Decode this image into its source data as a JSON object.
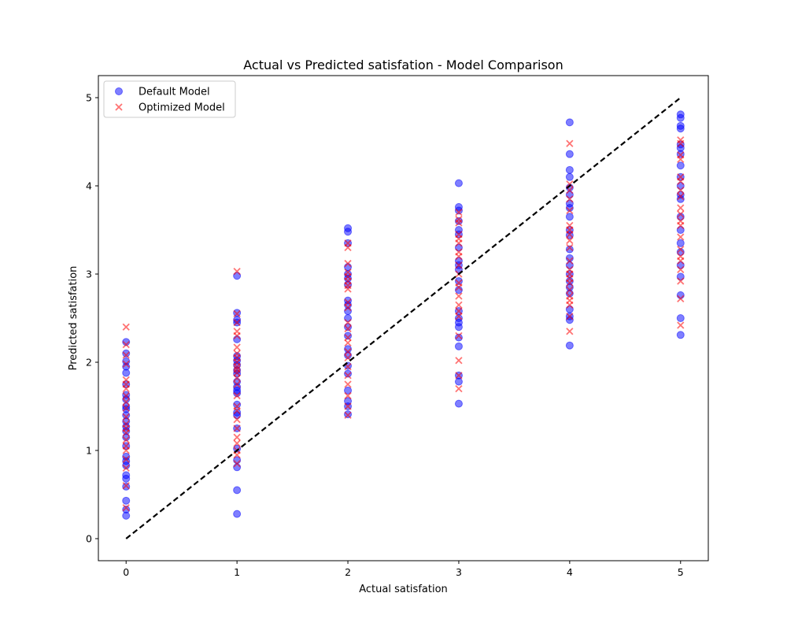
{
  "chart_data": {
    "type": "scatter",
    "title": "Actual vs Predicted satisfation - Model Comparison",
    "xlabel": "Actual satisfation",
    "ylabel": "Predicted satisfation",
    "xlim": [
      -0.25,
      5.25
    ],
    "ylim": [
      -0.25,
      5.25
    ],
    "xticks": [
      0,
      1,
      2,
      3,
      4,
      5
    ],
    "yticks": [
      0,
      1,
      2,
      3,
      4,
      5
    ],
    "grid": false,
    "legend_position": "upper-left",
    "reference_line": {
      "from": [
        0,
        0
      ],
      "to": [
        5,
        5
      ],
      "style": "dashed",
      "color": "#000000"
    },
    "series": [
      {
        "name": "Default Model",
        "marker": "circle",
        "color": "#0000ff",
        "points": [
          [
            0,
            2.23
          ],
          [
            0,
            2.1
          ],
          [
            0,
            2.01
          ],
          [
            0,
            1.95
          ],
          [
            0,
            1.88
          ],
          [
            0,
            1.75
          ],
          [
            0,
            1.63
          ],
          [
            0,
            1.58
          ],
          [
            0,
            1.5
          ],
          [
            0,
            1.47
          ],
          [
            0,
            1.4
          ],
          [
            0,
            1.33
          ],
          [
            0,
            1.27
          ],
          [
            0,
            1.22
          ],
          [
            0,
            1.15
          ],
          [
            0,
            1.05
          ],
          [
            0,
            0.93
          ],
          [
            0,
            0.88
          ],
          [
            0,
            0.83
          ],
          [
            0,
            0.72
          ],
          [
            0,
            0.68
          ],
          [
            0,
            0.59
          ],
          [
            0,
            0.43
          ],
          [
            0,
            0.33
          ],
          [
            0,
            0.26
          ],
          [
            1,
            2.98
          ],
          [
            1,
            2.56
          ],
          [
            1,
            2.48
          ],
          [
            1,
            2.45
          ],
          [
            1,
            2.26
          ],
          [
            1,
            2.07
          ],
          [
            1,
            2.02
          ],
          [
            1,
            1.97
          ],
          [
            1,
            1.91
          ],
          [
            1,
            1.87
          ],
          [
            1,
            1.78
          ],
          [
            1,
            1.72
          ],
          [
            1,
            1.68
          ],
          [
            1,
            1.65
          ],
          [
            1,
            1.52
          ],
          [
            1,
            1.43
          ],
          [
            1,
            1.4
          ],
          [
            1,
            1.25
          ],
          [
            1,
            1.02
          ],
          [
            1,
            0.89
          ],
          [
            1,
            0.81
          ],
          [
            1,
            0.55
          ],
          [
            1,
            0.28
          ],
          [
            2,
            3.52
          ],
          [
            2,
            3.48
          ],
          [
            2,
            3.35
          ],
          [
            2,
            3.08
          ],
          [
            2,
            3.0
          ],
          [
            2,
            2.95
          ],
          [
            2,
            2.88
          ],
          [
            2,
            2.7
          ],
          [
            2,
            2.65
          ],
          [
            2,
            2.58
          ],
          [
            2,
            2.5
          ],
          [
            2,
            2.4
          ],
          [
            2,
            2.3
          ],
          [
            2,
            2.15
          ],
          [
            2,
            2.08
          ],
          [
            2,
            1.96
          ],
          [
            2,
            1.87
          ],
          [
            2,
            1.68
          ],
          [
            2,
            1.56
          ],
          [
            2,
            1.5
          ],
          [
            2,
            1.41
          ],
          [
            3,
            4.03
          ],
          [
            3,
            3.76
          ],
          [
            3,
            3.72
          ],
          [
            3,
            3.6
          ],
          [
            3,
            3.5
          ],
          [
            3,
            3.45
          ],
          [
            3,
            3.3
          ],
          [
            3,
            3.15
          ],
          [
            3,
            3.1
          ],
          [
            3,
            3.05
          ],
          [
            3,
            2.92
          ],
          [
            3,
            2.82
          ],
          [
            3,
            2.58
          ],
          [
            3,
            2.5
          ],
          [
            3,
            2.45
          ],
          [
            3,
            2.4
          ],
          [
            3,
            2.28
          ],
          [
            3,
            2.18
          ],
          [
            3,
            1.85
          ],
          [
            3,
            1.78
          ],
          [
            3,
            1.53
          ],
          [
            4,
            4.72
          ],
          [
            4,
            4.36
          ],
          [
            4,
            4.18
          ],
          [
            4,
            4.1
          ],
          [
            4,
            3.98
          ],
          [
            4,
            3.9
          ],
          [
            4,
            3.8
          ],
          [
            4,
            3.75
          ],
          [
            4,
            3.65
          ],
          [
            4,
            3.5
          ],
          [
            4,
            3.44
          ],
          [
            4,
            3.28
          ],
          [
            4,
            3.18
          ],
          [
            4,
            3.1
          ],
          [
            4,
            3.0
          ],
          [
            4,
            2.92
          ],
          [
            4,
            2.85
          ],
          [
            4,
            2.78
          ],
          [
            4,
            2.6
          ],
          [
            4,
            2.52
          ],
          [
            4,
            2.48
          ],
          [
            4,
            2.19
          ],
          [
            5,
            4.81
          ],
          [
            5,
            4.77
          ],
          [
            5,
            4.68
          ],
          [
            5,
            4.65
          ],
          [
            5,
            4.47
          ],
          [
            5,
            4.43
          ],
          [
            5,
            4.36
          ],
          [
            5,
            4.23
          ],
          [
            5,
            4.1
          ],
          [
            5,
            4.0
          ],
          [
            5,
            3.9
          ],
          [
            5,
            3.85
          ],
          [
            5,
            3.65
          ],
          [
            5,
            3.5
          ],
          [
            5,
            3.35
          ],
          [
            5,
            3.25
          ],
          [
            5,
            3.1
          ],
          [
            5,
            2.97
          ],
          [
            5,
            2.76
          ],
          [
            5,
            2.5
          ],
          [
            5,
            2.31
          ]
        ]
      },
      {
        "name": "Optimized Model",
        "marker": "x",
        "color": "#ff0000",
        "points": [
          [
            0,
            2.4
          ],
          [
            0,
            2.2
          ],
          [
            0,
            2.08
          ],
          [
            0,
            1.98
          ],
          [
            0,
            1.8
          ],
          [
            0,
            1.75
          ],
          [
            0,
            1.7
          ],
          [
            0,
            1.62
          ],
          [
            0,
            1.55
          ],
          [
            0,
            1.48
          ],
          [
            0,
            1.38
          ],
          [
            0,
            1.3
          ],
          [
            0,
            1.25
          ],
          [
            0,
            1.2
          ],
          [
            0,
            1.12
          ],
          [
            0,
            1.05
          ],
          [
            0,
            1.0
          ],
          [
            0,
            0.9
          ],
          [
            0,
            0.8
          ],
          [
            0,
            0.6
          ],
          [
            0,
            0.35
          ],
          [
            1,
            3.03
          ],
          [
            1,
            2.55
          ],
          [
            1,
            2.45
          ],
          [
            1,
            2.35
          ],
          [
            1,
            2.3
          ],
          [
            1,
            2.17
          ],
          [
            1,
            2.1
          ],
          [
            1,
            2.05
          ],
          [
            1,
            2.0
          ],
          [
            1,
            1.95
          ],
          [
            1,
            1.92
          ],
          [
            1,
            1.88
          ],
          [
            1,
            1.82
          ],
          [
            1,
            1.75
          ],
          [
            1,
            1.62
          ],
          [
            1,
            1.5
          ],
          [
            1,
            1.45
          ],
          [
            1,
            1.35
          ],
          [
            1,
            1.25
          ],
          [
            1,
            1.15
          ],
          [
            1,
            1.08
          ],
          [
            1,
            1.0
          ],
          [
            1,
            0.95
          ],
          [
            1,
            0.85
          ],
          [
            2,
            3.35
          ],
          [
            2,
            3.3
          ],
          [
            2,
            3.12
          ],
          [
            2,
            3.02
          ],
          [
            2,
            2.97
          ],
          [
            2,
            2.92
          ],
          [
            2,
            2.87
          ],
          [
            2,
            2.83
          ],
          [
            2,
            2.68
          ],
          [
            2,
            2.62
          ],
          [
            2,
            2.45
          ],
          [
            2,
            2.38
          ],
          [
            2,
            2.28
          ],
          [
            2,
            2.22
          ],
          [
            2,
            2.12
          ],
          [
            2,
            2.05
          ],
          [
            2,
            1.95
          ],
          [
            2,
            1.85
          ],
          [
            2,
            1.75
          ],
          [
            2,
            1.62
          ],
          [
            2,
            1.5
          ],
          [
            2,
            1.4
          ],
          [
            3,
            3.7
          ],
          [
            3,
            3.62
          ],
          [
            3,
            3.58
          ],
          [
            3,
            3.45
          ],
          [
            3,
            3.4
          ],
          [
            3,
            3.35
          ],
          [
            3,
            3.25
          ],
          [
            3,
            3.2
          ],
          [
            3,
            3.1
          ],
          [
            3,
            3.0
          ],
          [
            3,
            2.9
          ],
          [
            3,
            2.85
          ],
          [
            3,
            2.75
          ],
          [
            3,
            2.65
          ],
          [
            3,
            2.58
          ],
          [
            3,
            2.52
          ],
          [
            3,
            2.3
          ],
          [
            3,
            2.02
          ],
          [
            3,
            1.85
          ],
          [
            3,
            1.7
          ],
          [
            4,
            4.48
          ],
          [
            4,
            4.02
          ],
          [
            4,
            3.95
          ],
          [
            4,
            3.85
          ],
          [
            4,
            3.72
          ],
          [
            4,
            3.55
          ],
          [
            4,
            3.5
          ],
          [
            4,
            3.45
          ],
          [
            4,
            3.38
          ],
          [
            4,
            3.3
          ],
          [
            4,
            3.15
          ],
          [
            4,
            3.05
          ],
          [
            4,
            3.0
          ],
          [
            4,
            2.95
          ],
          [
            4,
            2.9
          ],
          [
            4,
            2.82
          ],
          [
            4,
            2.75
          ],
          [
            4,
            2.7
          ],
          [
            4,
            2.65
          ],
          [
            4,
            2.52
          ],
          [
            4,
            2.35
          ],
          [
            5,
            4.52
          ],
          [
            5,
            4.48
          ],
          [
            5,
            4.35
          ],
          [
            5,
            4.3
          ],
          [
            5,
            4.1
          ],
          [
            5,
            4.05
          ],
          [
            5,
            3.95
          ],
          [
            5,
            3.88
          ],
          [
            5,
            3.75
          ],
          [
            5,
            3.68
          ],
          [
            5,
            3.6
          ],
          [
            5,
            3.55
          ],
          [
            5,
            3.42
          ],
          [
            5,
            3.28
          ],
          [
            5,
            3.2
          ],
          [
            5,
            3.15
          ],
          [
            5,
            3.05
          ],
          [
            5,
            2.92
          ],
          [
            5,
            2.72
          ],
          [
            5,
            2.42
          ]
        ]
      }
    ]
  }
}
